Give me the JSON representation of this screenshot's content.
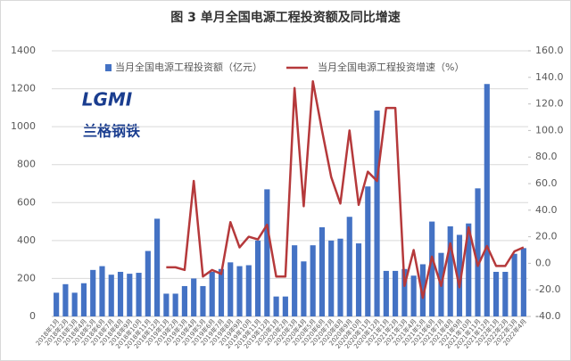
{
  "chart_data": {
    "type": "bar_line",
    "title": "图 3 单月全国电源工程投资额及同比增速",
    "watermark": [
      "LGMI",
      "兰格钢铁"
    ],
    "categories": [
      "2018年1月",
      "2018年2月",
      "2018年3月",
      "2018年4月",
      "2018年5月",
      "2018年6月",
      "2018年7月",
      "2018年8月",
      "2018年9月",
      "2018年10月",
      "2018年11月",
      "2018年12月",
      "2019年1月",
      "2019年2月",
      "2019年3月",
      "2019年4月",
      "2019年5月",
      "2019年6月",
      "2019年7月",
      "2019年8月",
      "2019年9月",
      "2019年10月",
      "2019年11月",
      "2019年12月",
      "2020年1月",
      "2020年2月",
      "2020年3月",
      "2020年4月",
      "2020年5月",
      "2020年6月",
      "2020年7月",
      "2020年8月",
      "2020年9月",
      "2020年10月",
      "2020年11月",
      "2020年12月",
      "2021年1月",
      "2021年2月",
      "2021年3月",
      "2021年4月",
      "2021年5月",
      "2021年6月",
      "2021年7月",
      "2021年8月",
      "2021年9月",
      "2021年10月",
      "2021年11月",
      "2021年12月",
      "2022年1月",
      "2022年2月",
      "2022年3月",
      "2022年4月"
    ],
    "series": [
      {
        "name": "当月全国电源工程投资额（亿元）",
        "type": "bar",
        "color": "#4472c4",
        "values": [
          125,
          170,
          125,
          175,
          245,
          265,
          220,
          235,
          225,
          230,
          345,
          515,
          120,
          120,
          160,
          200,
          160,
          235,
          250,
          285,
          265,
          270,
          400,
          670,
          105,
          105,
          375,
          290,
          375,
          470,
          400,
          410,
          525,
          385,
          685,
          1085,
          240,
          240,
          250,
          215,
          275,
          500,
          335,
          475,
          430,
          490,
          675,
          1225,
          235,
          235,
          330,
          360
        ]
      },
      {
        "name": "当月全国电源工程投资增速（%）",
        "type": "line",
        "color": "#b5393b",
        "axis": "y2",
        "values": [
          null,
          null,
          null,
          null,
          null,
          null,
          null,
          null,
          null,
          null,
          null,
          null,
          -3,
          -3,
          -5,
          62,
          -10,
          -5,
          -8,
          31,
          12,
          20,
          18,
          29,
          -10,
          -10,
          132,
          43,
          137,
          100,
          65,
          45,
          100,
          44,
          69,
          62,
          117,
          117,
          -17,
          10,
          -26,
          5,
          -17,
          15,
          -18,
          27,
          -2,
          13,
          -2,
          -2,
          9,
          12
        ]
      }
    ],
    "ylim": [
      0,
      1400
    ],
    "yticks": [
      0,
      200,
      400,
      600,
      800,
      1000,
      1200,
      1400
    ],
    "y2lim": [
      -40,
      160
    ],
    "y2ticks": [
      {
        "value": -40,
        "label": "-40.0"
      },
      {
        "value": -20,
        "label": "-20.0"
      },
      {
        "value": 0,
        "label": "0.0"
      },
      {
        "value": 20,
        "label": "20.0"
      },
      {
        "value": 40,
        "label": "40.0"
      },
      {
        "value": 60,
        "label": "60.0"
      },
      {
        "value": 80,
        "label": "80.0"
      },
      {
        "value": 100,
        "label": "100.0"
      },
      {
        "value": 120,
        "label": "120.0"
      },
      {
        "value": 140,
        "label": "140.0"
      },
      {
        "value": 160,
        "label": "160.0"
      }
    ],
    "grid": true
  }
}
